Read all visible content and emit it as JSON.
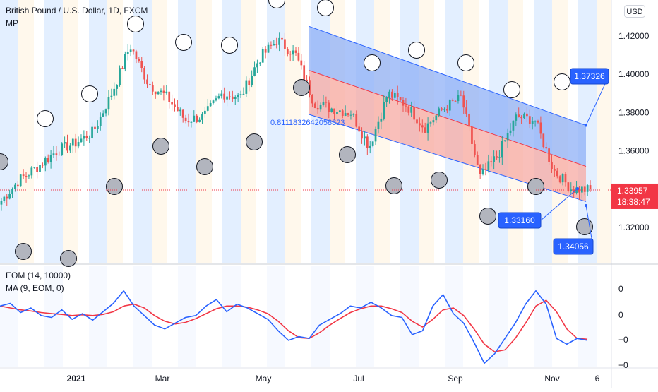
{
  "header": {
    "symbol_line": "British Pound / U.S. Dollar, 1D, FXCM",
    "sub_label": "MP",
    "currency_button": "USD"
  },
  "colors": {
    "up_candle": "#26a69a",
    "down_candle": "#ef5350",
    "channel_upper_fill": "#8fb0f7",
    "channel_lower_fill": "#f7a9a3",
    "channel_line": "#2962ff",
    "label_blue": "#2962ff",
    "current_price_red": "#f23645",
    "eom_line": "#2962ff",
    "ma_line": "#f23645",
    "band_light_blue": "#e3efff",
    "band_cream": "#fff8ec"
  },
  "chart_data": [
    {
      "type": "candlestick",
      "title": "British Pound / U.S. Dollar, 1D, FXCM",
      "x_ticks": [
        "2021",
        "Mar",
        "May",
        "Jul",
        "Sep",
        "Nov",
        "6"
      ],
      "y_ticks": [
        "1.32000",
        "1.34000",
        "1.36000",
        "1.38000",
        "1.40000",
        "1.42000"
      ],
      "ylim": [
        1.306,
        1.43
      ],
      "grid": false,
      "annotations": {
        "fib_label": "0.8111832642058823",
        "channel_top_right_label": "1.37326",
        "channel_bottom_left_label": "1.33160",
        "channel_bottom_right_label": "1.34056",
        "current_price": "1.33957",
        "countdown": "18:38:47"
      },
      "channel": {
        "upper_start": 1.425,
        "upper_end": 1.3733,
        "mid_start": 1.402,
        "mid_end": 1.3519,
        "lower_start": 1.379,
        "lower_end": 1.3335
      },
      "close_path": [
        {
          "m": "Nov 2020 end",
          "v": 1.334
        },
        {
          "m": "Dec 2020",
          "v": 1.345
        },
        {
          "m": "Dec 2020 mid",
          "v": 1.352
        },
        {
          "m": "Jan 2021 start",
          "v": 1.36
        },
        {
          "m": "Jan 2021",
          "v": 1.364
        },
        {
          "m": "Jan 2021 end",
          "v": 1.37
        },
        {
          "m": "Feb 2021 mid",
          "v": 1.39
        },
        {
          "m": "Feb 2021 end",
          "v": 1.415
        },
        {
          "m": "Mar 2021 start",
          "v": 1.395
        },
        {
          "m": "Mar 2021 mid",
          "v": 1.388
        },
        {
          "m": "Apr 2021 start",
          "v": 1.376
        },
        {
          "m": "Apr 2021 mid",
          "v": 1.378
        },
        {
          "m": "Apr 2021 end",
          "v": 1.39
        },
        {
          "m": "May 2021 start",
          "v": 1.388
        },
        {
          "m": "May 2021 mid",
          "v": 1.408
        },
        {
          "m": "Jun 2021 start",
          "v": 1.418
        },
        {
          "m": "Jun 2021 mid",
          "v": 1.41
        },
        {
          "m": "Jun 2021 end",
          "v": 1.385
        },
        {
          "m": "Jul 2021 start",
          "v": 1.382
        },
        {
          "m": "Jul 2021 mid",
          "v": 1.38
        },
        {
          "m": "Jul 2021 late",
          "v": 1.362
        },
        {
          "m": "Aug 2021 start",
          "v": 1.39
        },
        {
          "m": "Aug 2021 mid",
          "v": 1.384
        },
        {
          "m": "Aug 2021 end",
          "v": 1.372
        },
        {
          "m": "Sep 2021 start",
          "v": 1.382
        },
        {
          "m": "Sep 2021 mid",
          "v": 1.388
        },
        {
          "m": "Sep 2021 end",
          "v": 1.346
        },
        {
          "m": "Oct 2021 start",
          "v": 1.358
        },
        {
          "m": "Oct 2021 mid",
          "v": 1.378
        },
        {
          "m": "Oct 2021 end",
          "v": 1.376
        },
        {
          "m": "Nov 2021 start",
          "v": 1.35
        },
        {
          "m": "Nov 2021 mid",
          "v": 1.34
        },
        {
          "m": "Nov 2021 now",
          "v": 1.3396
        }
      ]
    },
    {
      "type": "line",
      "legend": [
        "EOM (14, 10000)",
        "MA (9, EOM, 0)"
      ],
      "y_ticks": [
        "0",
        "0",
        "−0",
        "−0"
      ],
      "x_ticks": [
        "2021",
        "Mar",
        "May",
        "Jul",
        "Sep",
        "Nov",
        "6"
      ],
      "series": [
        {
          "name": "EOM (14, 10000)",
          "values": [
            0.55,
            0.62,
            0.38,
            0.5,
            0.3,
            0.25,
            0.45,
            0.2,
            0.35,
            0.18,
            0.4,
            0.62,
            0.95,
            0.55,
            0.3,
            0.05,
            -0.05,
            0.1,
            0.25,
            0.3,
            0.55,
            0.72,
            0.4,
            0.6,
            0.5,
            0.35,
            0.2,
            -0.1,
            -0.35,
            -0.25,
            -0.3,
            0.05,
            0.2,
            0.35,
            0.55,
            0.5,
            0.65,
            0.5,
            0.3,
            0.25,
            -0.2,
            -0.1,
            0.55,
            0.85,
            0.35,
            0.1,
            -0.4,
            -0.95,
            -0.7,
            -0.3,
            0.1,
            0.6,
            0.95,
            0.6,
            -0.3,
            -0.45,
            -0.3,
            -0.35
          ]
        },
        {
          "name": "MA (9, EOM, 0)",
          "values": [
            0.55,
            0.5,
            0.45,
            0.42,
            0.38,
            0.35,
            0.33,
            0.3,
            0.32,
            0.3,
            0.33,
            0.4,
            0.55,
            0.6,
            0.5,
            0.3,
            0.15,
            0.08,
            0.12,
            0.22,
            0.35,
            0.48,
            0.55,
            0.55,
            0.52,
            0.45,
            0.35,
            0.15,
            -0.1,
            -0.28,
            -0.3,
            -0.15,
            0.05,
            0.22,
            0.38,
            0.48,
            0.55,
            0.55,
            0.48,
            0.38,
            0.15,
            0.0,
            0.2,
            0.45,
            0.5,
            0.3,
            -0.05,
            -0.45,
            -0.65,
            -0.6,
            -0.3,
            0.1,
            0.55,
            0.7,
            0.4,
            -0.05,
            -0.3,
            -0.32
          ]
        }
      ]
    }
  ]
}
